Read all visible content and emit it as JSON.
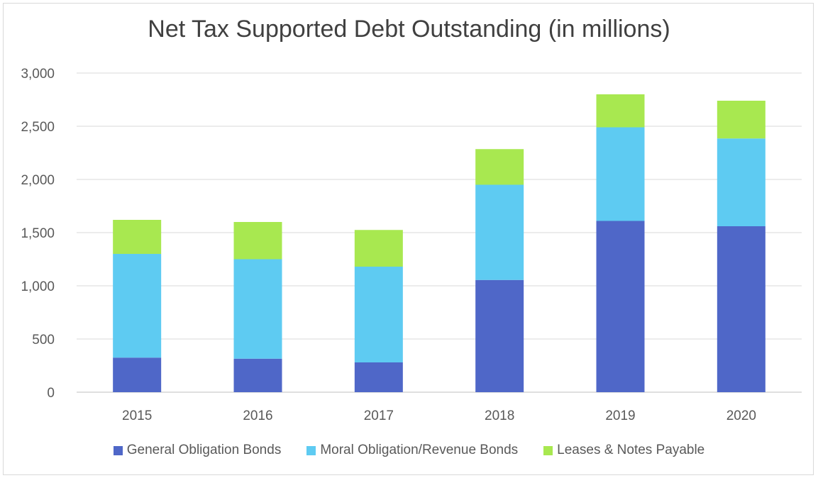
{
  "chart_data": {
    "type": "bar",
    "stacked": true,
    "title": "Net Tax Supported Debt Outstanding (in millions)",
    "xlabel": "",
    "ylabel": "",
    "ylim": [
      0,
      3000
    ],
    "yticks": [
      "0",
      "500",
      "1,000",
      "1,500",
      "2,000",
      "2,500",
      "3,000"
    ],
    "categories": [
      "2015",
      "2016",
      "2017",
      "2018",
      "2019",
      "2020"
    ],
    "series": [
      {
        "name": "General Obligation Bonds",
        "color": "#4f67c8",
        "values": [
          325,
          315,
          280,
          1055,
          1610,
          1560
        ]
      },
      {
        "name": "Moral Obligation/Revenue Bonds",
        "color": "#5ecbf2",
        "values": [
          975,
          935,
          900,
          895,
          880,
          825
        ]
      },
      {
        "name": "Leases & Notes Payable",
        "color": "#a8e850",
        "values": [
          320,
          350,
          345,
          335,
          310,
          355
        ]
      }
    ],
    "grid": true,
    "legend_position": "bottom"
  }
}
